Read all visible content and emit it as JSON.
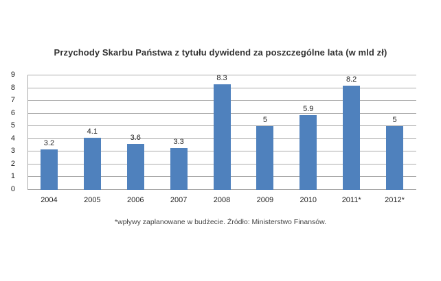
{
  "chart_data": {
    "type": "bar",
    "title": "Przychody  Skarbu Państwa z tytułu dywidend za poszczególne lata (w mld zł)",
    "xlabel": "",
    "ylabel": "",
    "categories": [
      "2004",
      "2005",
      "2006",
      "2007",
      "2008",
      "2009",
      "2010",
      "2011*",
      "2012*"
    ],
    "values": [
      3.2,
      4.1,
      3.6,
      3.3,
      8.3,
      5,
      5.9,
      8.2,
      5
    ],
    "data_labels": [
      "3.2",
      "4.1",
      "3.6",
      "3.3",
      "8.3",
      "5",
      "5.9",
      "8.2",
      "5"
    ],
    "ylim": [
      0,
      9
    ],
    "yticks": [
      "0",
      "1",
      "2",
      "3",
      "4",
      "5",
      "6",
      "7",
      "8",
      "9"
    ],
    "grid": true,
    "legend": "none",
    "bar_color": "#4f81bd",
    "annotations": [
      "*wpływy zaplanowane w budżecie. Źródło: Ministerstwo Finansów."
    ]
  },
  "footnote": "*wpływy zaplanowane w budżecie. Źródło: Ministerstwo Finansów."
}
